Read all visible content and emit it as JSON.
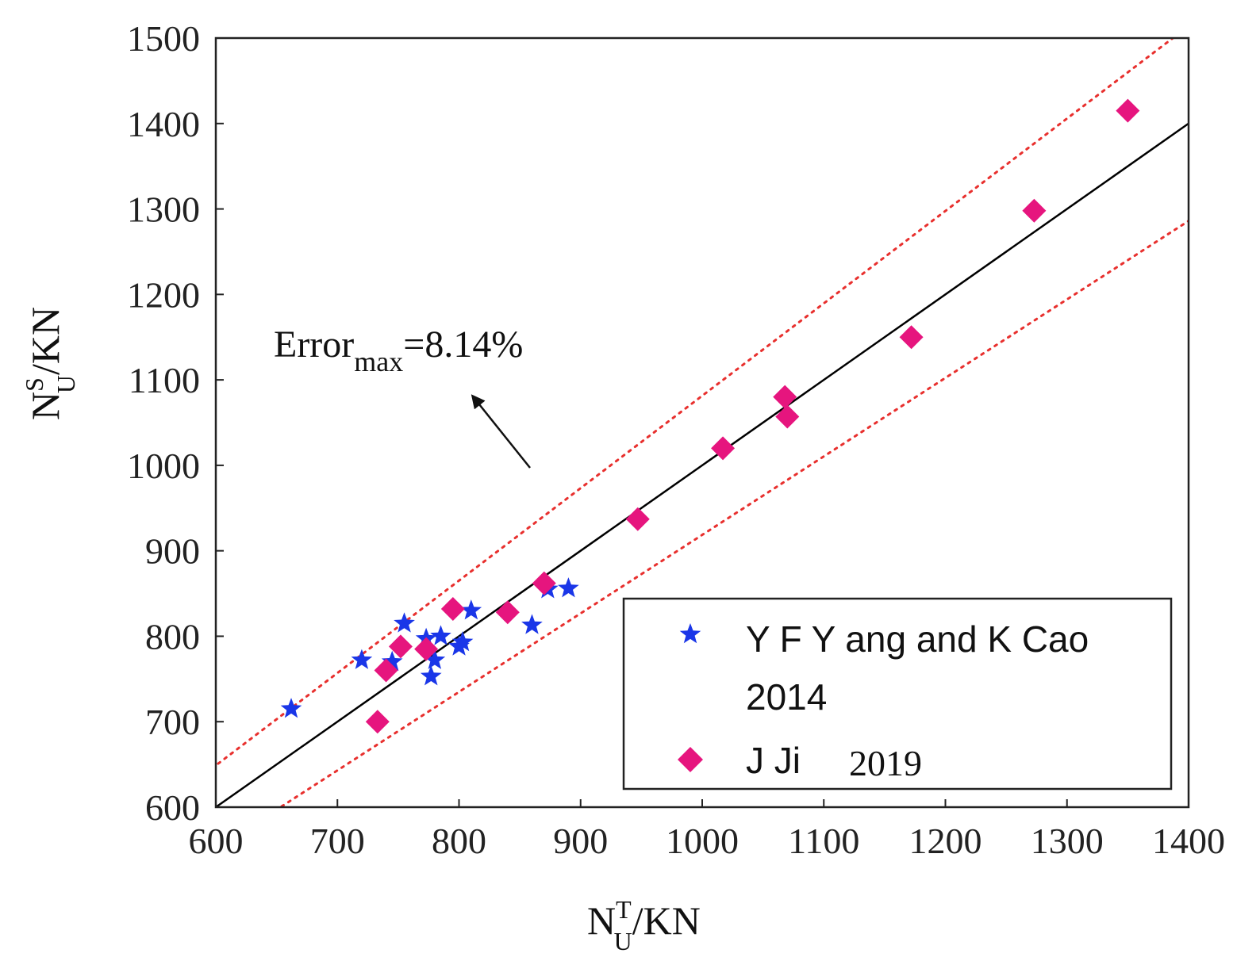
{
  "chart_data": {
    "type": "scatter",
    "xlabel": {
      "main": "N",
      "sup": "T",
      "sub": "U",
      "unit": "/KN"
    },
    "ylabel": {
      "main": "N",
      "sup": "S",
      "sub": "U",
      "unit": "/KN"
    },
    "xlim": [
      600,
      1400
    ],
    "ylim": [
      600,
      1500
    ],
    "xticks": [
      "600",
      "700",
      "800",
      "900",
      "1000",
      "1100",
      "1200",
      "1300",
      "1400"
    ],
    "yticks": [
      "600",
      "700",
      "800",
      "900",
      "1000",
      "1100",
      "1200",
      "1300",
      "1400",
      "1500"
    ],
    "grid": false,
    "legend_position": "bottom-right",
    "annotation": {
      "prefix": "Error",
      "sub": "max",
      "suffix": "=8.14%",
      "arrow_to": [
        975,
        985
      ]
    },
    "reference_lines": [
      {
        "name": "y = x",
        "slope": 1.0,
        "style": "solid",
        "color": "#000000"
      },
      {
        "name": "+8.14% bound",
        "slope": 1.0814,
        "style": "dotted",
        "color": "#e8302e"
      },
      {
        "name": "-8.14% bound",
        "slope": 0.9186,
        "style": "dotted",
        "color": "#e8302e"
      }
    ],
    "series": [
      {
        "name": "Y F Y ang and K Cao",
        "name_line2": "2014",
        "marker": "star",
        "color": "#1a36e8",
        "points": [
          [
            662,
            715
          ],
          [
            720,
            772
          ],
          [
            745,
            770
          ],
          [
            755,
            815
          ],
          [
            773,
            797
          ],
          [
            777,
            753
          ],
          [
            780,
            772
          ],
          [
            785,
            800
          ],
          [
            800,
            788
          ],
          [
            803,
            793
          ],
          [
            810,
            830
          ],
          [
            860,
            813
          ],
          [
            873,
            855
          ],
          [
            890,
            856
          ]
        ]
      },
      {
        "name": "J Ji",
        "name_year": "2019",
        "marker": "diamond",
        "color": "#e6157e",
        "points": [
          [
            733,
            700
          ],
          [
            740,
            760
          ],
          [
            752,
            788
          ],
          [
            773,
            785
          ],
          [
            795,
            832
          ],
          [
            840,
            828
          ],
          [
            870,
            862
          ],
          [
            947,
            937
          ],
          [
            1017,
            1020
          ],
          [
            1068,
            1080
          ],
          [
            1070,
            1057
          ],
          [
            1172,
            1150
          ],
          [
            1273,
            1298
          ],
          [
            1350,
            1415
          ]
        ]
      }
    ]
  }
}
